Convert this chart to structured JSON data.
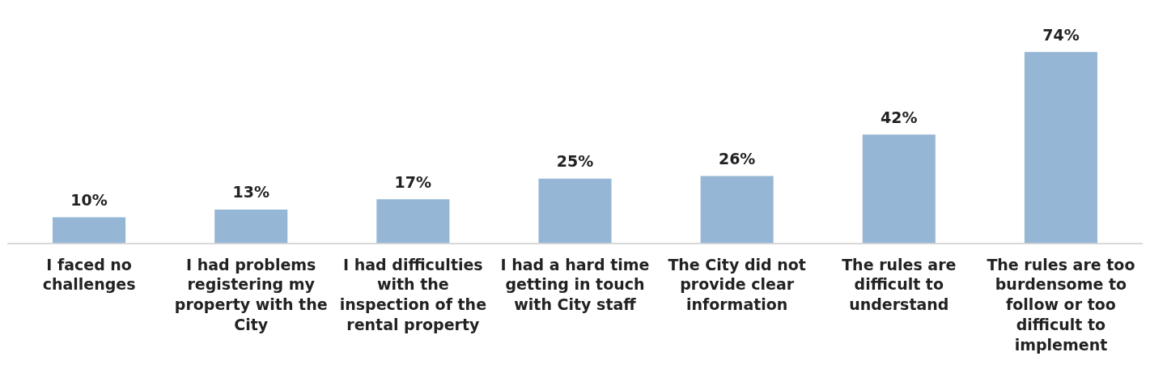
{
  "chart_data": {
    "type": "bar",
    "categories": [
      "I faced no challenges",
      "I had problems registering my property with the City",
      "I had difficulties with the inspection of the rental property",
      "I had a hard time getting in touch with City staff",
      "The City did not provide clear information",
      "The rules are difficult to understand",
      "The rules are too burdensome to follow or too difficult to implement"
    ],
    "values": [
      10,
      13,
      17,
      25,
      26,
      42,
      74
    ],
    "value_labels": [
      "10%",
      "13%",
      "17%",
      "25%",
      "26%",
      "42%",
      "74%"
    ],
    "color": "#95b6d4",
    "grid": false,
    "legend": false
  }
}
